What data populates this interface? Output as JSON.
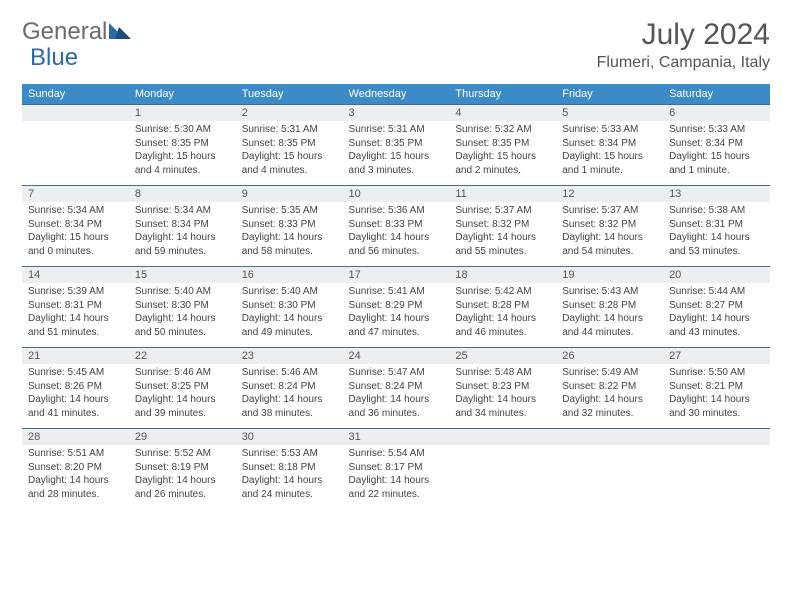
{
  "logo": {
    "text1": "General",
    "text2": "Blue",
    "color1": "#6b6b6b",
    "color2": "#2b6aa8"
  },
  "title": "July 2024",
  "location": "Flumeri, Campania, Italy",
  "header_color": "#3b8bc8",
  "daynum_bg": "#eceff1",
  "border_color": "#4a6a8a",
  "weekdays": [
    "Sunday",
    "Monday",
    "Tuesday",
    "Wednesday",
    "Thursday",
    "Friday",
    "Saturday"
  ],
  "weeks": [
    {
      "nums": [
        "",
        "1",
        "2",
        "3",
        "4",
        "5",
        "6"
      ],
      "cells": [
        {
          "sunrise": "",
          "sunset": "",
          "daylight1": "",
          "daylight2": ""
        },
        {
          "sunrise": "Sunrise: 5:30 AM",
          "sunset": "Sunset: 8:35 PM",
          "daylight1": "Daylight: 15 hours",
          "daylight2": "and 4 minutes."
        },
        {
          "sunrise": "Sunrise: 5:31 AM",
          "sunset": "Sunset: 8:35 PM",
          "daylight1": "Daylight: 15 hours",
          "daylight2": "and 4 minutes."
        },
        {
          "sunrise": "Sunrise: 5:31 AM",
          "sunset": "Sunset: 8:35 PM",
          "daylight1": "Daylight: 15 hours",
          "daylight2": "and 3 minutes."
        },
        {
          "sunrise": "Sunrise: 5:32 AM",
          "sunset": "Sunset: 8:35 PM",
          "daylight1": "Daylight: 15 hours",
          "daylight2": "and 2 minutes."
        },
        {
          "sunrise": "Sunrise: 5:33 AM",
          "sunset": "Sunset: 8:34 PM",
          "daylight1": "Daylight: 15 hours",
          "daylight2": "and 1 minute."
        },
        {
          "sunrise": "Sunrise: 5:33 AM",
          "sunset": "Sunset: 8:34 PM",
          "daylight1": "Daylight: 15 hours",
          "daylight2": "and 1 minute."
        }
      ]
    },
    {
      "nums": [
        "7",
        "8",
        "9",
        "10",
        "11",
        "12",
        "13"
      ],
      "cells": [
        {
          "sunrise": "Sunrise: 5:34 AM",
          "sunset": "Sunset: 8:34 PM",
          "daylight1": "Daylight: 15 hours",
          "daylight2": "and 0 minutes."
        },
        {
          "sunrise": "Sunrise: 5:34 AM",
          "sunset": "Sunset: 8:34 PM",
          "daylight1": "Daylight: 14 hours",
          "daylight2": "and 59 minutes."
        },
        {
          "sunrise": "Sunrise: 5:35 AM",
          "sunset": "Sunset: 8:33 PM",
          "daylight1": "Daylight: 14 hours",
          "daylight2": "and 58 minutes."
        },
        {
          "sunrise": "Sunrise: 5:36 AM",
          "sunset": "Sunset: 8:33 PM",
          "daylight1": "Daylight: 14 hours",
          "daylight2": "and 56 minutes."
        },
        {
          "sunrise": "Sunrise: 5:37 AM",
          "sunset": "Sunset: 8:32 PM",
          "daylight1": "Daylight: 14 hours",
          "daylight2": "and 55 minutes."
        },
        {
          "sunrise": "Sunrise: 5:37 AM",
          "sunset": "Sunset: 8:32 PM",
          "daylight1": "Daylight: 14 hours",
          "daylight2": "and 54 minutes."
        },
        {
          "sunrise": "Sunrise: 5:38 AM",
          "sunset": "Sunset: 8:31 PM",
          "daylight1": "Daylight: 14 hours",
          "daylight2": "and 53 minutes."
        }
      ]
    },
    {
      "nums": [
        "14",
        "15",
        "16",
        "17",
        "18",
        "19",
        "20"
      ],
      "cells": [
        {
          "sunrise": "Sunrise: 5:39 AM",
          "sunset": "Sunset: 8:31 PM",
          "daylight1": "Daylight: 14 hours",
          "daylight2": "and 51 minutes."
        },
        {
          "sunrise": "Sunrise: 5:40 AM",
          "sunset": "Sunset: 8:30 PM",
          "daylight1": "Daylight: 14 hours",
          "daylight2": "and 50 minutes."
        },
        {
          "sunrise": "Sunrise: 5:40 AM",
          "sunset": "Sunset: 8:30 PM",
          "daylight1": "Daylight: 14 hours",
          "daylight2": "and 49 minutes."
        },
        {
          "sunrise": "Sunrise: 5:41 AM",
          "sunset": "Sunset: 8:29 PM",
          "daylight1": "Daylight: 14 hours",
          "daylight2": "and 47 minutes."
        },
        {
          "sunrise": "Sunrise: 5:42 AM",
          "sunset": "Sunset: 8:28 PM",
          "daylight1": "Daylight: 14 hours",
          "daylight2": "and 46 minutes."
        },
        {
          "sunrise": "Sunrise: 5:43 AM",
          "sunset": "Sunset: 8:28 PM",
          "daylight1": "Daylight: 14 hours",
          "daylight2": "and 44 minutes."
        },
        {
          "sunrise": "Sunrise: 5:44 AM",
          "sunset": "Sunset: 8:27 PM",
          "daylight1": "Daylight: 14 hours",
          "daylight2": "and 43 minutes."
        }
      ]
    },
    {
      "nums": [
        "21",
        "22",
        "23",
        "24",
        "25",
        "26",
        "27"
      ],
      "cells": [
        {
          "sunrise": "Sunrise: 5:45 AM",
          "sunset": "Sunset: 8:26 PM",
          "daylight1": "Daylight: 14 hours",
          "daylight2": "and 41 minutes."
        },
        {
          "sunrise": "Sunrise: 5:46 AM",
          "sunset": "Sunset: 8:25 PM",
          "daylight1": "Daylight: 14 hours",
          "daylight2": "and 39 minutes."
        },
        {
          "sunrise": "Sunrise: 5:46 AM",
          "sunset": "Sunset: 8:24 PM",
          "daylight1": "Daylight: 14 hours",
          "daylight2": "and 38 minutes."
        },
        {
          "sunrise": "Sunrise: 5:47 AM",
          "sunset": "Sunset: 8:24 PM",
          "daylight1": "Daylight: 14 hours",
          "daylight2": "and 36 minutes."
        },
        {
          "sunrise": "Sunrise: 5:48 AM",
          "sunset": "Sunset: 8:23 PM",
          "daylight1": "Daylight: 14 hours",
          "daylight2": "and 34 minutes."
        },
        {
          "sunrise": "Sunrise: 5:49 AM",
          "sunset": "Sunset: 8:22 PM",
          "daylight1": "Daylight: 14 hours",
          "daylight2": "and 32 minutes."
        },
        {
          "sunrise": "Sunrise: 5:50 AM",
          "sunset": "Sunset: 8:21 PM",
          "daylight1": "Daylight: 14 hours",
          "daylight2": "and 30 minutes."
        }
      ]
    },
    {
      "nums": [
        "28",
        "29",
        "30",
        "31",
        "",
        "",
        ""
      ],
      "cells": [
        {
          "sunrise": "Sunrise: 5:51 AM",
          "sunset": "Sunset: 8:20 PM",
          "daylight1": "Daylight: 14 hours",
          "daylight2": "and 28 minutes."
        },
        {
          "sunrise": "Sunrise: 5:52 AM",
          "sunset": "Sunset: 8:19 PM",
          "daylight1": "Daylight: 14 hours",
          "daylight2": "and 26 minutes."
        },
        {
          "sunrise": "Sunrise: 5:53 AM",
          "sunset": "Sunset: 8:18 PM",
          "daylight1": "Daylight: 14 hours",
          "daylight2": "and 24 minutes."
        },
        {
          "sunrise": "Sunrise: 5:54 AM",
          "sunset": "Sunset: 8:17 PM",
          "daylight1": "Daylight: 14 hours",
          "daylight2": "and 22 minutes."
        },
        {
          "sunrise": "",
          "sunset": "",
          "daylight1": "",
          "daylight2": ""
        },
        {
          "sunrise": "",
          "sunset": "",
          "daylight1": "",
          "daylight2": ""
        },
        {
          "sunrise": "",
          "sunset": "",
          "daylight1": "",
          "daylight2": ""
        }
      ]
    }
  ]
}
